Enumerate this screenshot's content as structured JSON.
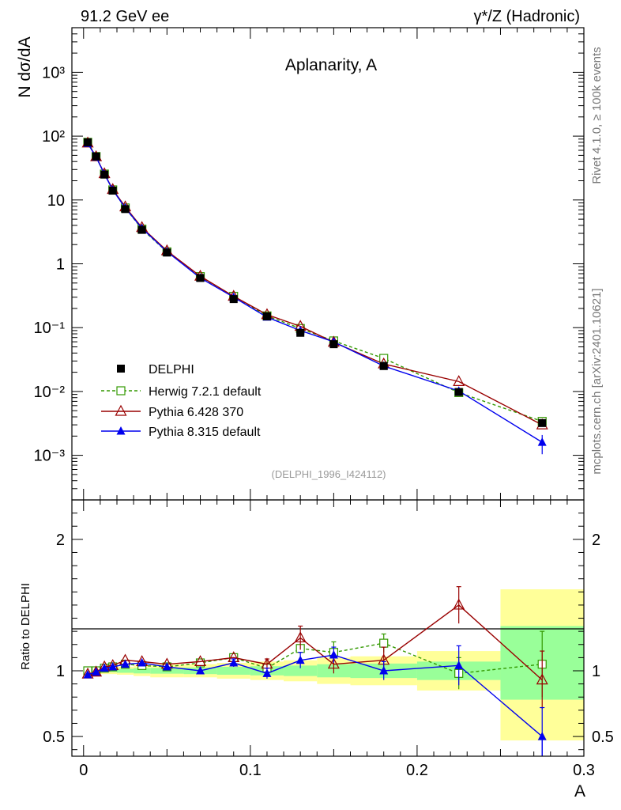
{
  "header": {
    "left": "91.2 GeV ee",
    "right": "γ*/Z (Hadronic)",
    "title": "Aplanarity, A",
    "analysis_id": "(DELPHI_1996_I424112)",
    "side_rivet": "Rivet 4.1.0, ≥ 100k events",
    "side_site": "mcplots.cern.ch [arXiv:2401.10621]"
  },
  "chart_data": [
    {
      "type": "line",
      "panel": "main",
      "ylabel": "N  dσ/dA",
      "yscale": "log",
      "ylim": [
        0.0002,
        5000
      ],
      "xlim": [
        -0.007,
        0.3
      ],
      "y_tick_labels": [
        "10⁻³",
        "10⁻²",
        "10⁻¹",
        "1",
        "10",
        "10²",
        "10³"
      ],
      "x": [
        0.0025,
        0.0075,
        0.0125,
        0.0175,
        0.025,
        0.035,
        0.05,
        0.07,
        0.09,
        0.11,
        0.13,
        0.15,
        0.18,
        0.225,
        0.275
      ],
      "series": [
        {
          "name": "DELPHI",
          "color": "#000000",
          "marker": "filled-square",
          "values": [
            80,
            48,
            25,
            14,
            7.2,
            3.4,
            1.5,
            0.6,
            0.28,
            0.15,
            0.083,
            0.055,
            0.025,
            0.0098,
            0.0032
          ]
        },
        {
          "name": "Herwig 7.2.1 default",
          "color": "#339900",
          "marker": "open-square",
          "dashed": true,
          "values": [
            80,
            48,
            25.5,
            14.4,
            7.5,
            3.5,
            1.54,
            0.63,
            0.31,
            0.153,
            0.097,
            0.062,
            0.033,
            0.0096,
            0.0034
          ]
        },
        {
          "name": "Pythia 6.428 370",
          "color": "#990000",
          "marker": "open-triangle",
          "values": [
            78,
            47.5,
            25.8,
            14.6,
            7.8,
            3.7,
            1.6,
            0.64,
            0.31,
            0.16,
            0.105,
            0.059,
            0.027,
            0.0143,
            0.003
          ]
        },
        {
          "name": "Pythia 8.315 default",
          "color": "#0000ee",
          "marker": "filled-triangle",
          "values": [
            77,
            47,
            25.5,
            14.4,
            7.5,
            3.6,
            1.55,
            0.6,
            0.3,
            0.146,
            0.09,
            0.06,
            0.025,
            0.0102,
            0.0016
          ]
        }
      ]
    },
    {
      "type": "line",
      "panel": "ratio",
      "ylabel": "Ratio to DELPHI",
      "xlabel": "A",
      "ylim": [
        0.35,
        2.3
      ],
      "xlim": [
        -0.007,
        0.3
      ],
      "y_tick_labels": [
        "0.5",
        "1",
        "2"
      ],
      "x_tick_labels": [
        "0",
        "0.1",
        "0.2",
        "0.3"
      ],
      "bands": {
        "edges": [
          0,
          0.005,
          0.01,
          0.015,
          0.02,
          0.03,
          0.04,
          0.06,
          0.08,
          0.1,
          0.12,
          0.14,
          0.16,
          0.2,
          0.25,
          0.3
        ],
        "yellow": [
          [
            0.985,
            1.015
          ],
          [
            0.98,
            1.02
          ],
          [
            0.975,
            1.025
          ],
          [
            0.975,
            1.025
          ],
          [
            0.97,
            1.03
          ],
          [
            0.96,
            1.04
          ],
          [
            0.95,
            1.05
          ],
          [
            0.95,
            1.05
          ],
          [
            0.94,
            1.06
          ],
          [
            0.93,
            1.07
          ],
          [
            0.92,
            1.08
          ],
          [
            0.9,
            1.1
          ],
          [
            0.89,
            1.11
          ],
          [
            0.85,
            1.15
          ],
          [
            0.47,
            1.62
          ]
        ],
        "green": [
          [
            0.995,
            1.005
          ],
          [
            0.99,
            1.01
          ],
          [
            0.99,
            1.01
          ],
          [
            0.99,
            1.01
          ],
          [
            0.985,
            1.015
          ],
          [
            0.98,
            1.02
          ],
          [
            0.978,
            1.022
          ],
          [
            0.975,
            1.025
          ],
          [
            0.97,
            1.03
          ],
          [
            0.965,
            1.035
          ],
          [
            0.96,
            1.04
          ],
          [
            0.95,
            1.05
          ],
          [
            0.945,
            1.055
          ],
          [
            0.93,
            1.07
          ],
          [
            0.78,
            1.34
          ]
        ]
      },
      "series": [
        {
          "name": "Herwig 7.2.1 default",
          "color": "#339900",
          "values": [
            1.0,
            1.0,
            1.02,
            1.03,
            1.05,
            1.04,
            1.03,
            1.06,
            1.1,
            1.02,
            1.17,
            1.14,
            1.21,
            0.98,
            1.05
          ],
          "errors": [
            0.0,
            0.0,
            0.0,
            0.0,
            0.0,
            0.0,
            0.0,
            0.0,
            0.0,
            0.0,
            0.0,
            0.08,
            0.07,
            0.12,
            0.25
          ]
        },
        {
          "name": "Pythia 6.428 370",
          "color": "#990000",
          "values": [
            0.975,
            0.99,
            1.03,
            1.04,
            1.08,
            1.07,
            1.05,
            1.07,
            1.1,
            1.05,
            1.25,
            1.05,
            1.08,
            1.5,
            0.93
          ],
          "errors": [
            0.0,
            0.0,
            0.0,
            0.0,
            0.0,
            0.0,
            0.0,
            0.0,
            0.0,
            0.04,
            0.09,
            0.07,
            0.1,
            0.14,
            0.22
          ]
        },
        {
          "name": "Pythia 8.315 default",
          "color": "#0000ee",
          "values": [
            0.97,
            0.99,
            1.02,
            1.03,
            1.05,
            1.06,
            1.03,
            1.0,
            1.06,
            0.98,
            1.08,
            1.12,
            1.0,
            1.04,
            0.5
          ],
          "errors": [
            0.0,
            0.0,
            0.0,
            0.0,
            0.0,
            0.0,
            0.0,
            0.0,
            0.03,
            0.04,
            0.06,
            0.06,
            0.07,
            0.15,
            0.22
          ]
        }
      ]
    }
  ]
}
